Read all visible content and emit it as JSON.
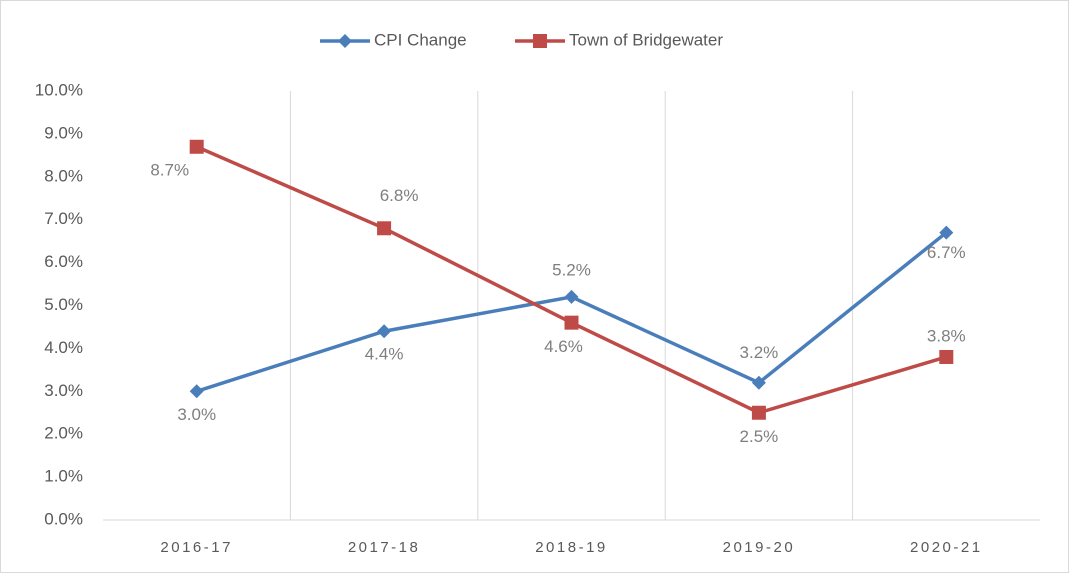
{
  "chart_data": {
    "type": "line",
    "categories": [
      "2016-17",
      "2017-18",
      "2018-19",
      "2019-20",
      "2020-21"
    ],
    "series": [
      {
        "name": "CPI Change",
        "color": "#4a7ebb",
        "marker": "diamond",
        "values": [
          3.0,
          4.4,
          5.2,
          3.2,
          6.7
        ],
        "value_labels": [
          "3.0%",
          "4.4%",
          "5.2%",
          "3.2%",
          "6.7%"
        ]
      },
      {
        "name": "Town of Bridgewater",
        "color": "#be4b48",
        "marker": "square",
        "values": [
          8.7,
          6.8,
          4.6,
          2.5,
          3.8
        ],
        "value_labels": [
          "8.7%",
          "6.8%",
          "4.6%",
          "2.5%",
          "3.8%"
        ]
      }
    ],
    "ylim": [
      0,
      10
    ],
    "yticks": [
      {
        "value": 0,
        "label": "0.0%"
      },
      {
        "value": 1,
        "label": "1.0%"
      },
      {
        "value": 2,
        "label": "2.0%"
      },
      {
        "value": 3,
        "label": "3.0%"
      },
      {
        "value": 4,
        "label": "4.0%"
      },
      {
        "value": 5,
        "label": "5.0%"
      },
      {
        "value": 6,
        "label": "6.0%"
      },
      {
        "value": 7,
        "label": "7.0%"
      },
      {
        "value": 8,
        "label": "8.0%"
      },
      {
        "value": 9,
        "label": "9.0%"
      },
      {
        "value": 10,
        "label": "10.0%"
      }
    ],
    "legend": "top"
  }
}
